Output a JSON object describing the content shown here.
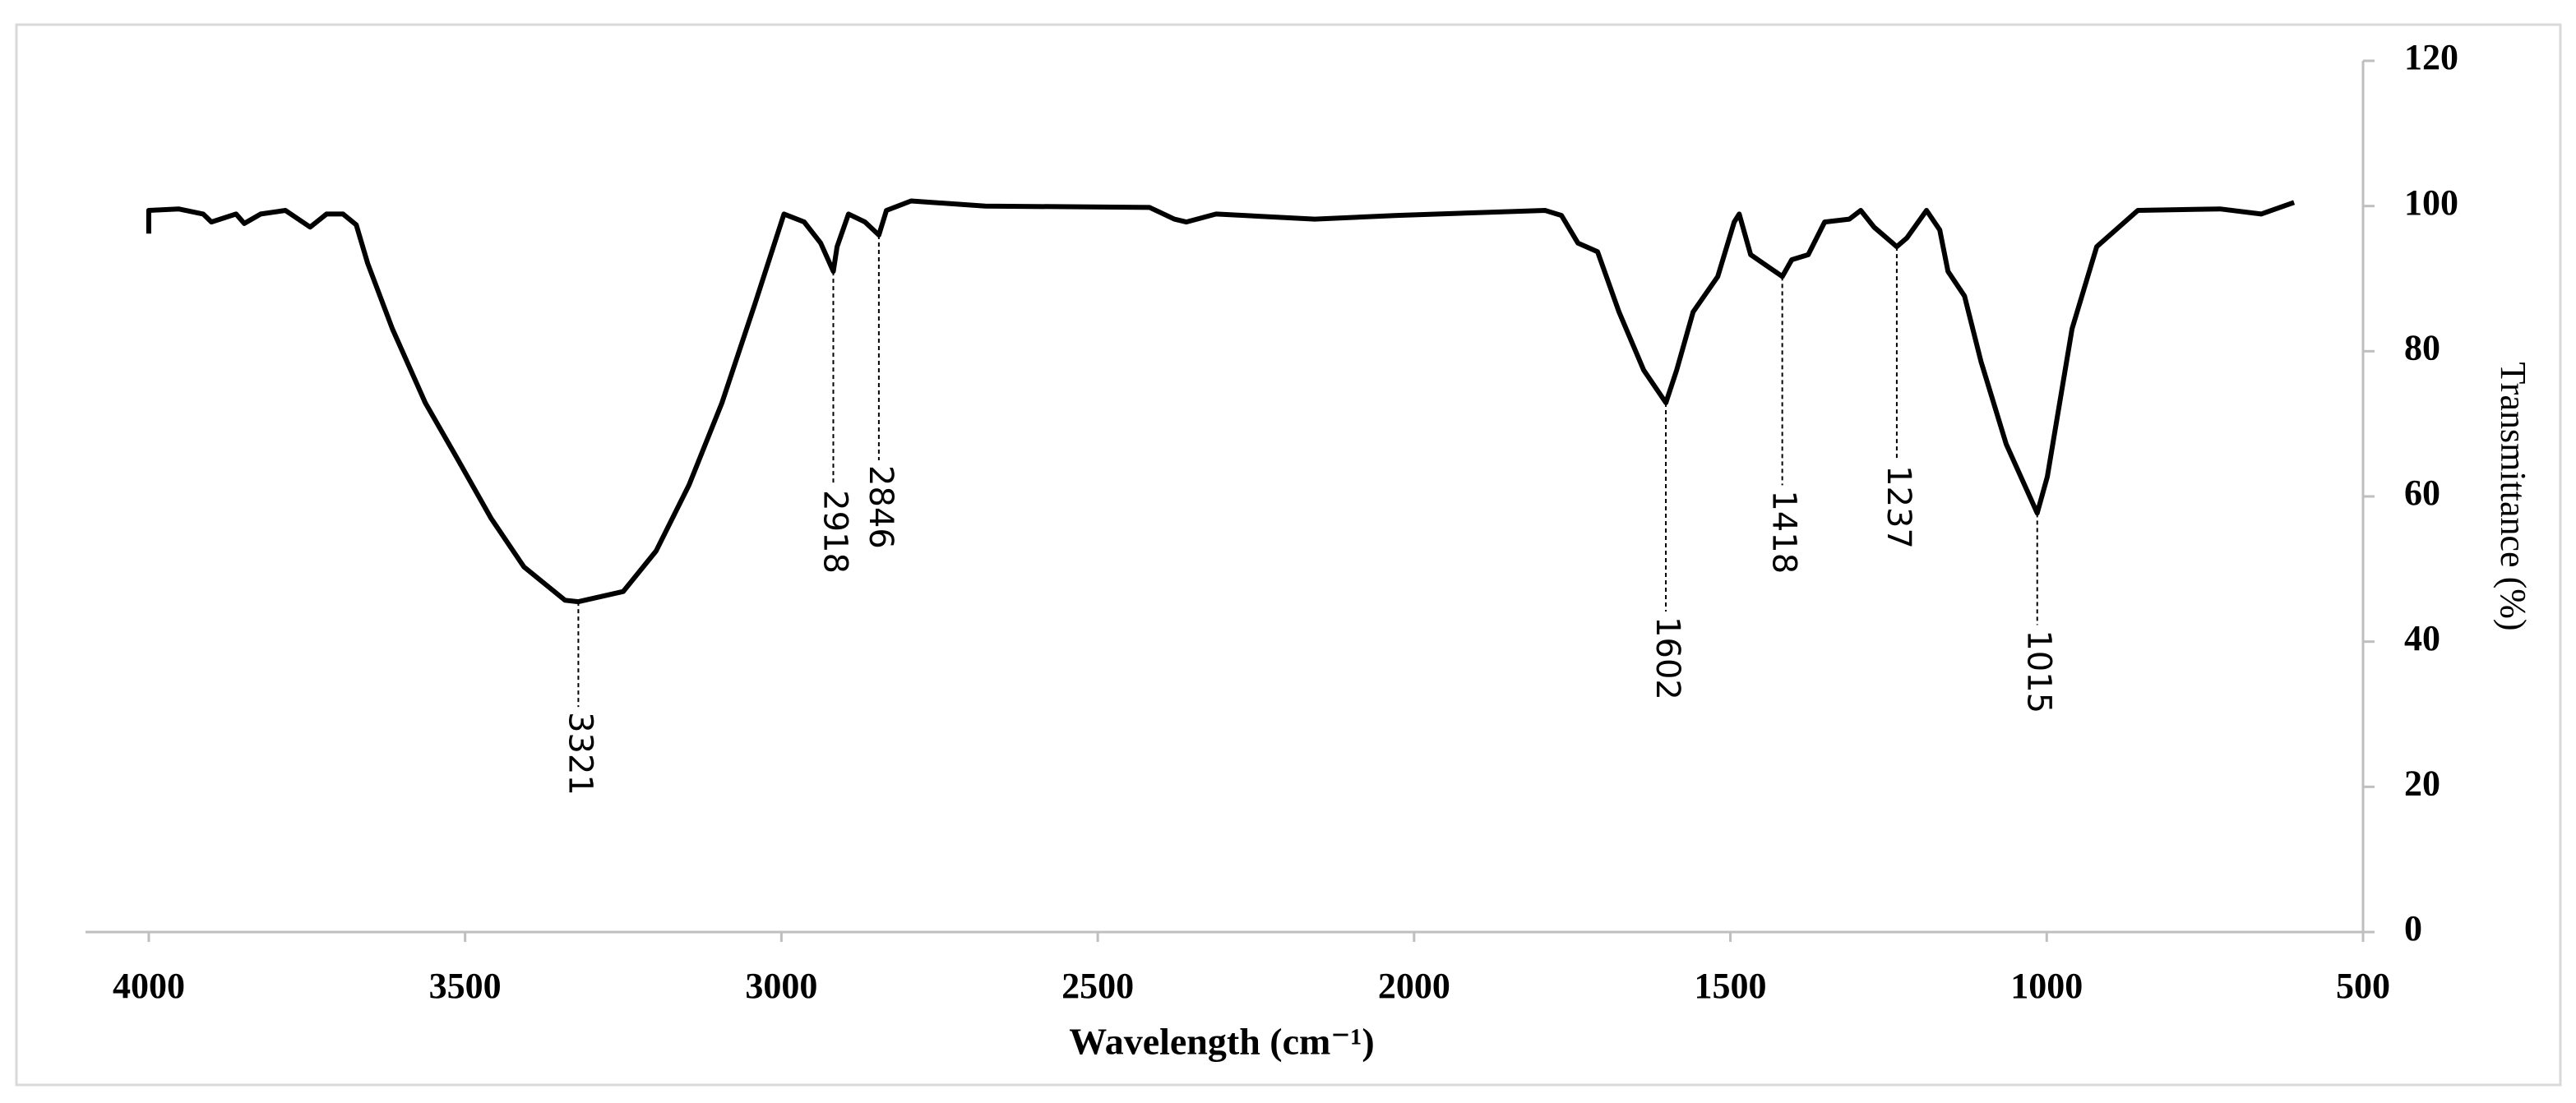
{
  "chart_data": {
    "type": "line",
    "x_label": "Wavelength (cm⁻¹)",
    "y_label": "Transmittance (%)",
    "xlim": [
      4100,
      500
    ],
    "xticks": [
      4000,
      3500,
      3000,
      2500,
      2000,
      1500,
      1000,
      500
    ],
    "ylim": [
      0,
      120
    ],
    "yticks": [
      0,
      20,
      40,
      60,
      80,
      100,
      120
    ],
    "grid": false,
    "series": [
      {
        "color": "#000000",
        "x": [
          4000,
          4000,
          3953,
          3914,
          3901,
          3862,
          3849,
          3823,
          3784,
          3745,
          3719,
          3693,
          3672,
          3654,
          3615,
          3563,
          3511,
          3459,
          3407,
          3342,
          3321,
          3250,
          3198,
          3146,
          3094,
          3042,
          2996,
          2964,
          2938,
          2918,
          2912,
          2894,
          2868,
          2846,
          2834,
          2795,
          2678,
          2418,
          2379,
          2360,
          2313,
          2157,
          2027,
          1793,
          1767,
          1741,
          1710,
          1676,
          1637,
          1602,
          1585,
          1559,
          1520,
          1494,
          1486,
          1468,
          1418,
          1403,
          1377,
          1351,
          1312,
          1294,
          1273,
          1237,
          1221,
          1190,
          1169,
          1156,
          1130,
          1104,
          1064,
          1015,
          999,
          960,
          921,
          856,
          726,
          661,
          609
        ],
        "values": [
          96.2,
          99.4,
          99.6,
          98.9,
          97.8,
          98.9,
          97.6,
          98.9,
          99.4,
          97.1,
          98.9,
          98.9,
          97.4,
          92.1,
          83.1,
          72.9,
          65,
          57,
          50.3,
          45.7,
          45.5,
          46.9,
          52.5,
          61.6,
          72.9,
          86.5,
          98.9,
          97.8,
          94.9,
          91,
          94.4,
          98.9,
          97.8,
          96,
          99.4,
          100.7,
          100,
          99.8,
          98.2,
          97.8,
          98.9,
          98.2,
          98.7,
          99.4,
          98.7,
          94.9,
          93.7,
          85.4,
          77.4,
          72.9,
          77.4,
          85.4,
          90.3,
          97.8,
          98.9,
          93.3,
          90.3,
          92.6,
          93.3,
          97.8,
          98.2,
          99.4,
          97.1,
          94.4,
          95.6,
          99.4,
          96.7,
          91,
          87.6,
          78.6,
          67.2,
          57.7,
          62.7,
          83.1,
          94.4,
          99.4,
          99.6,
          98.9,
          100.5
        ]
      }
    ],
    "annotations": [
      3321,
      2918,
      2846,
      1602,
      1418,
      1237,
      1015
    ]
  }
}
